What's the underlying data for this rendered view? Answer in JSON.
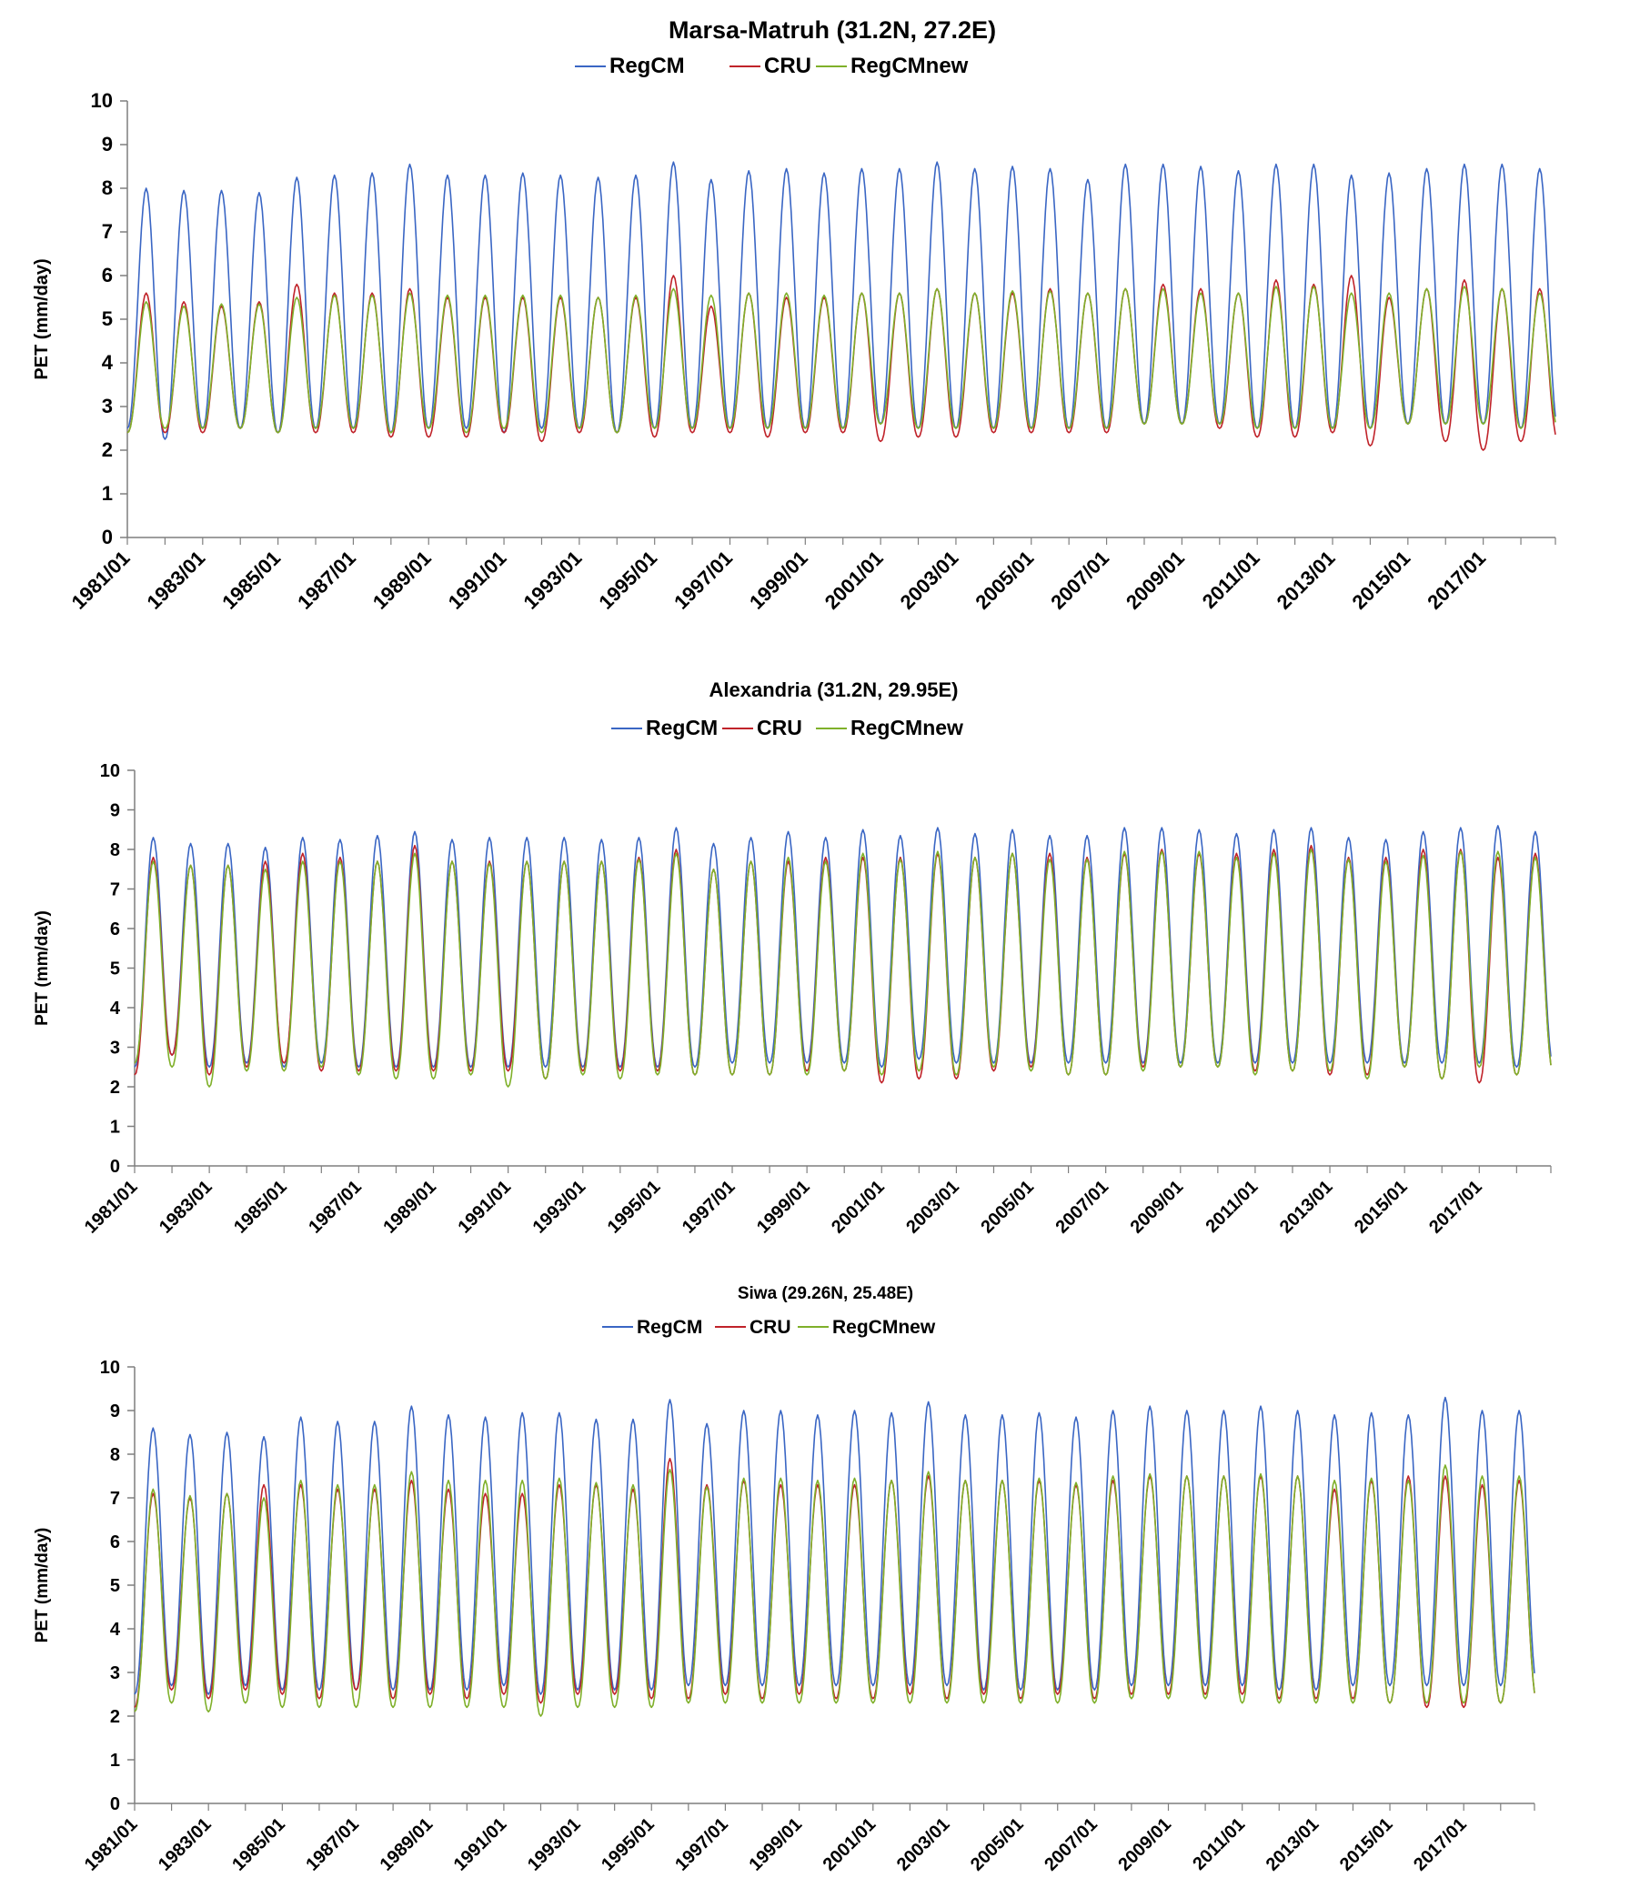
{
  "chart_data": [
    {
      "type": "line",
      "title": "Marsa-Matruh (31.2N, 27.2E)",
      "ylabel": "PET (mm/day)",
      "xlabel": "",
      "ylim": [
        0,
        10
      ],
      "yticks": [
        "0",
        "1",
        "2",
        "3",
        "4",
        "5",
        "6",
        "7",
        "8",
        "9",
        "10"
      ],
      "xticks": [
        "1981/01",
        "1983/01",
        "1985/01",
        "1987/01",
        "1989/01",
        "1991/01",
        "1993/01",
        "1995/01",
        "1997/01",
        "1999/01",
        "2001/01",
        "2003/01",
        "2005/01",
        "2007/01",
        "2009/01",
        "2011/01",
        "2013/01",
        "2015/01",
        "2017/01"
      ],
      "x_range": [
        "1981/01",
        "2018/12"
      ],
      "grid": false,
      "legend_position": "top-center",
      "years": [
        1981,
        1982,
        1983,
        1984,
        1985,
        1986,
        1987,
        1988,
        1989,
        1990,
        1991,
        1992,
        1993,
        1994,
        1995,
        1996,
        1997,
        1998,
        1999,
        2000,
        2001,
        2002,
        2003,
        2004,
        2005,
        2006,
        2007,
        2008,
        2009,
        2010,
        2011,
        2012,
        2013,
        2014,
        2015,
        2016,
        2017,
        2018
      ],
      "series": [
        {
          "name": "RegCM",
          "color": "#3a66c4",
          "max": [
            8.0,
            7.95,
            7.95,
            7.9,
            8.25,
            8.3,
            8.35,
            8.55,
            8.3,
            8.3,
            8.35,
            8.3,
            8.25,
            8.3,
            8.6,
            8.2,
            8.4,
            8.45,
            8.35,
            8.45,
            8.45,
            8.6,
            8.45,
            8.5,
            8.45,
            8.2,
            8.55,
            8.55,
            8.5,
            8.4,
            8.55,
            8.55,
            8.3,
            8.35,
            8.45,
            8.55,
            8.55,
            8.45
          ],
          "min": [
            2.5,
            2.25,
            2.5,
            2.5,
            2.4,
            2.5,
            2.5,
            2.4,
            2.5,
            2.5,
            2.4,
            2.5,
            2.5,
            2.4,
            2.5,
            2.5,
            2.5,
            2.5,
            2.5,
            2.5,
            2.6,
            2.5,
            2.5,
            2.5,
            2.5,
            2.5,
            2.5,
            2.6,
            2.6,
            2.6,
            2.5,
            2.5,
            2.5,
            2.5,
            2.6,
            2.6,
            2.6,
            2.5
          ]
        },
        {
          "name": "CRU",
          "color": "#c0232a",
          "max": [
            5.6,
            5.4,
            5.3,
            5.4,
            5.8,
            5.6,
            5.6,
            5.7,
            5.5,
            5.5,
            5.5,
            5.5,
            5.5,
            5.5,
            6.0,
            5.3,
            5.6,
            5.5,
            5.5,
            5.6,
            5.6,
            5.7,
            5.6,
            5.6,
            5.7,
            5.6,
            5.7,
            5.8,
            5.7,
            5.6,
            5.9,
            5.8,
            6.0,
            5.5,
            5.7,
            5.9,
            5.7,
            5.7
          ],
          "min": [
            2.4,
            2.4,
            2.4,
            2.5,
            2.4,
            2.4,
            2.4,
            2.3,
            2.3,
            2.3,
            2.4,
            2.2,
            2.4,
            2.4,
            2.3,
            2.4,
            2.4,
            2.3,
            2.4,
            2.4,
            2.2,
            2.3,
            2.3,
            2.4,
            2.4,
            2.4,
            2.4,
            2.6,
            2.6,
            2.5,
            2.3,
            2.3,
            2.4,
            2.1,
            2.6,
            2.2,
            2.0,
            2.2
          ]
        },
        {
          "name": "RegCMnew",
          "color": "#7fb02a",
          "max": [
            5.4,
            5.3,
            5.35,
            5.35,
            5.5,
            5.55,
            5.55,
            5.6,
            5.55,
            5.55,
            5.55,
            5.55,
            5.5,
            5.55,
            5.7,
            5.55,
            5.6,
            5.6,
            5.55,
            5.6,
            5.6,
            5.7,
            5.6,
            5.65,
            5.65,
            5.6,
            5.7,
            5.7,
            5.6,
            5.6,
            5.75,
            5.75,
            5.6,
            5.6,
            5.7,
            5.75,
            5.7,
            5.6
          ],
          "min": [
            2.4,
            2.5,
            2.5,
            2.5,
            2.4,
            2.5,
            2.5,
            2.4,
            2.5,
            2.4,
            2.5,
            2.4,
            2.5,
            2.4,
            2.5,
            2.5,
            2.5,
            2.5,
            2.5,
            2.5,
            2.6,
            2.5,
            2.5,
            2.5,
            2.5,
            2.5,
            2.5,
            2.6,
            2.6,
            2.6,
            2.5,
            2.5,
            2.5,
            2.5,
            2.6,
            2.6,
            2.6,
            2.5
          ]
        }
      ]
    },
    {
      "type": "line",
      "title": "Alexandria (31.2N, 29.95E)",
      "ylabel": "PET (mm/day)",
      "xlabel": "",
      "ylim": [
        0,
        10
      ],
      "yticks": [
        "0",
        "1",
        "2",
        "3",
        "4",
        "5",
        "6",
        "7",
        "8",
        "9",
        "10"
      ],
      "xticks": [
        "1981/01",
        "1983/01",
        "1985/01",
        "1987/01",
        "1989/01",
        "1991/01",
        "1993/01",
        "1995/01",
        "1997/01",
        "1999/01",
        "2001/01",
        "2003/01",
        "2005/01",
        "2007/01",
        "2009/01",
        "2011/01",
        "2013/01",
        "2015/01",
        "2017/01"
      ],
      "x_range": [
        "1981/01",
        "2018/12"
      ],
      "grid": false,
      "legend_position": "top-center",
      "years": [
        1981,
        1982,
        1983,
        1984,
        1985,
        1986,
        1987,
        1988,
        1989,
        1990,
        1991,
        1992,
        1993,
        1994,
        1995,
        1996,
        1997,
        1998,
        1999,
        2000,
        2001,
        2002,
        2003,
        2004,
        2005,
        2006,
        2007,
        2008,
        2009,
        2010,
        2011,
        2012,
        2013,
        2014,
        2015,
        2016,
        2017,
        2018
      ],
      "series": [
        {
          "name": "RegCM",
          "color": "#3a66c4",
          "max": [
            8.3,
            8.15,
            8.15,
            8.05,
            8.3,
            8.25,
            8.35,
            8.45,
            8.25,
            8.3,
            8.3,
            8.3,
            8.25,
            8.3,
            8.55,
            8.15,
            8.3,
            8.45,
            8.3,
            8.5,
            8.35,
            8.55,
            8.4,
            8.5,
            8.35,
            8.35,
            8.55,
            8.55,
            8.5,
            8.4,
            8.5,
            8.55,
            8.3,
            8.25,
            8.45,
            8.55,
            8.6,
            8.45
          ],
          "min": [
            2.5,
            2.8,
            2.5,
            2.6,
            2.5,
            2.6,
            2.5,
            2.5,
            2.5,
            2.5,
            2.5,
            2.5,
            2.5,
            2.5,
            2.5,
            2.5,
            2.6,
            2.6,
            2.6,
            2.6,
            2.5,
            2.7,
            2.6,
            2.6,
            2.6,
            2.6,
            2.6,
            2.6,
            2.6,
            2.6,
            2.6,
            2.6,
            2.6,
            2.6,
            2.6,
            2.6,
            2.6,
            2.5
          ]
        },
        {
          "name": "CRU",
          "color": "#c0232a",
          "max": [
            7.8,
            7.6,
            7.6,
            7.7,
            7.9,
            7.8,
            7.7,
            8.1,
            7.7,
            7.7,
            7.7,
            7.7,
            7.7,
            7.8,
            8.0,
            7.5,
            7.7,
            7.7,
            7.8,
            7.8,
            7.8,
            7.9,
            7.8,
            7.9,
            7.9,
            7.8,
            7.9,
            8.0,
            7.9,
            7.9,
            8.0,
            8.1,
            7.8,
            7.8,
            8.0,
            8.0,
            7.8,
            7.9
          ],
          "min": [
            2.3,
            2.8,
            2.3,
            2.5,
            2.6,
            2.4,
            2.4,
            2.4,
            2.4,
            2.4,
            2.4,
            2.2,
            2.4,
            2.4,
            2.4,
            2.3,
            2.3,
            2.3,
            2.4,
            2.4,
            2.1,
            2.2,
            2.2,
            2.4,
            2.5,
            2.3,
            2.3,
            2.5,
            2.5,
            2.5,
            2.4,
            2.4,
            2.3,
            2.3,
            2.5,
            2.2,
            2.1,
            2.3
          ]
        },
        {
          "name": "RegCMnew",
          "color": "#7fb02a",
          "max": [
            7.7,
            7.6,
            7.6,
            7.5,
            7.7,
            7.7,
            7.7,
            7.9,
            7.7,
            7.65,
            7.7,
            7.7,
            7.7,
            7.75,
            7.9,
            7.5,
            7.7,
            7.8,
            7.7,
            7.9,
            7.75,
            7.95,
            7.8,
            7.9,
            7.75,
            7.75,
            7.95,
            7.95,
            7.95,
            7.8,
            7.9,
            8.0,
            7.75,
            7.7,
            7.85,
            7.95,
            7.95,
            7.8
          ],
          "min": [
            2.6,
            2.5,
            2.0,
            2.4,
            2.4,
            2.5,
            2.3,
            2.2,
            2.2,
            2.3,
            2.0,
            2.2,
            2.3,
            2.2,
            2.3,
            2.3,
            2.3,
            2.3,
            2.3,
            2.4,
            2.3,
            2.4,
            2.3,
            2.5,
            2.4,
            2.3,
            2.3,
            2.4,
            2.5,
            2.5,
            2.3,
            2.4,
            2.4,
            2.2,
            2.5,
            2.2,
            2.5,
            2.3
          ]
        }
      ]
    },
    {
      "type": "line",
      "title": "Siwa (29.26N, 25.48E)",
      "ylabel": "PET (mm/day)",
      "xlabel": "",
      "ylim": [
        0,
        10
      ],
      "yticks": [
        "0",
        "1",
        "2",
        "3",
        "4",
        "5",
        "6",
        "7",
        "8",
        "9",
        "10"
      ],
      "xticks": [
        "1981/01",
        "1983/01",
        "1985/01",
        "1987/01",
        "1989/01",
        "1991/01",
        "1993/01",
        "1995/01",
        "1997/01",
        "1999/01",
        "2001/01",
        "2003/01",
        "2005/01",
        "2007/01",
        "2009/01",
        "2011/01",
        "2013/01",
        "2015/01",
        "2017/01"
      ],
      "x_range": [
        "1981/01",
        "2018/12"
      ],
      "grid": false,
      "legend_position": "top-center",
      "years": [
        1981,
        1982,
        1983,
        1984,
        1985,
        1986,
        1987,
        1988,
        1989,
        1990,
        1991,
        1992,
        1993,
        1994,
        1995,
        1996,
        1997,
        1998,
        1999,
        2000,
        2001,
        2002,
        2003,
        2004,
        2005,
        2006,
        2007,
        2008,
        2009,
        2010,
        2011,
        2012,
        2013,
        2014,
        2015,
        2016,
        2017,
        2018
      ],
      "series": [
        {
          "name": "RegCM",
          "color": "#3a66c4",
          "max": [
            8.6,
            8.45,
            8.5,
            8.4,
            8.85,
            8.75,
            8.75,
            9.1,
            8.9,
            8.85,
            8.95,
            8.95,
            8.8,
            8.8,
            9.25,
            8.7,
            9.0,
            9.0,
            8.9,
            9.0,
            8.95,
            9.2,
            8.9,
            8.9,
            8.95,
            8.85,
            9.0,
            9.1,
            9.0,
            9.0,
            9.1,
            9.0,
            8.9,
            8.95,
            8.9,
            9.3,
            9.0,
            9.0
          ],
          "min": [
            2.5,
            2.7,
            2.5,
            2.7,
            2.6,
            2.6,
            2.6,
            2.6,
            2.6,
            2.6,
            2.7,
            2.5,
            2.6,
            2.6,
            2.6,
            2.7,
            2.7,
            2.7,
            2.7,
            2.7,
            2.7,
            2.7,
            2.7,
            2.6,
            2.6,
            2.6,
            2.6,
            2.7,
            2.7,
            2.7,
            2.7,
            2.6,
            2.6,
            2.7,
            2.7,
            2.7,
            2.7,
            2.7
          ]
        },
        {
          "name": "CRU",
          "color": "#c0232a",
          "max": [
            7.1,
            7.0,
            7.1,
            7.3,
            7.3,
            7.2,
            7.2,
            7.4,
            7.2,
            7.1,
            7.1,
            7.3,
            7.3,
            7.2,
            7.9,
            7.3,
            7.4,
            7.3,
            7.3,
            7.3,
            7.4,
            7.5,
            7.4,
            7.4,
            7.4,
            7.3,
            7.4,
            7.5,
            7.5,
            7.5,
            7.5,
            7.5,
            7.2,
            7.4,
            7.5,
            7.5,
            7.3,
            7.4
          ],
          "min": [
            2.2,
            2.6,
            2.4,
            2.6,
            2.5,
            2.4,
            2.6,
            2.4,
            2.5,
            2.4,
            2.5,
            2.3,
            2.5,
            2.5,
            2.4,
            2.4,
            2.5,
            2.4,
            2.5,
            2.4,
            2.4,
            2.5,
            2.4,
            2.5,
            2.4,
            2.5,
            2.4,
            2.5,
            2.5,
            2.5,
            2.5,
            2.4,
            2.4,
            2.4,
            2.3,
            2.2,
            2.2,
            2.3
          ]
        },
        {
          "name": "RegCMnew",
          "color": "#7fb02a",
          "max": [
            7.2,
            7.05,
            7.1,
            7.0,
            7.4,
            7.3,
            7.3,
            7.6,
            7.4,
            7.4,
            7.4,
            7.45,
            7.35,
            7.3,
            7.65,
            7.25,
            7.45,
            7.45,
            7.4,
            7.45,
            7.4,
            7.6,
            7.4,
            7.4,
            7.45,
            7.35,
            7.5,
            7.55,
            7.5,
            7.5,
            7.55,
            7.5,
            7.4,
            7.45,
            7.4,
            7.75,
            7.5,
            7.5
          ],
          "min": [
            2.1,
            2.3,
            2.1,
            2.3,
            2.2,
            2.2,
            2.2,
            2.2,
            2.2,
            2.2,
            2.2,
            2.0,
            2.2,
            2.2,
            2.2,
            2.3,
            2.3,
            2.3,
            2.3,
            2.3,
            2.3,
            2.3,
            2.3,
            2.3,
            2.3,
            2.3,
            2.3,
            2.4,
            2.4,
            2.4,
            2.3,
            2.3,
            2.3,
            2.3,
            2.3,
            2.3,
            2.3,
            2.3
          ]
        }
      ]
    }
  ]
}
